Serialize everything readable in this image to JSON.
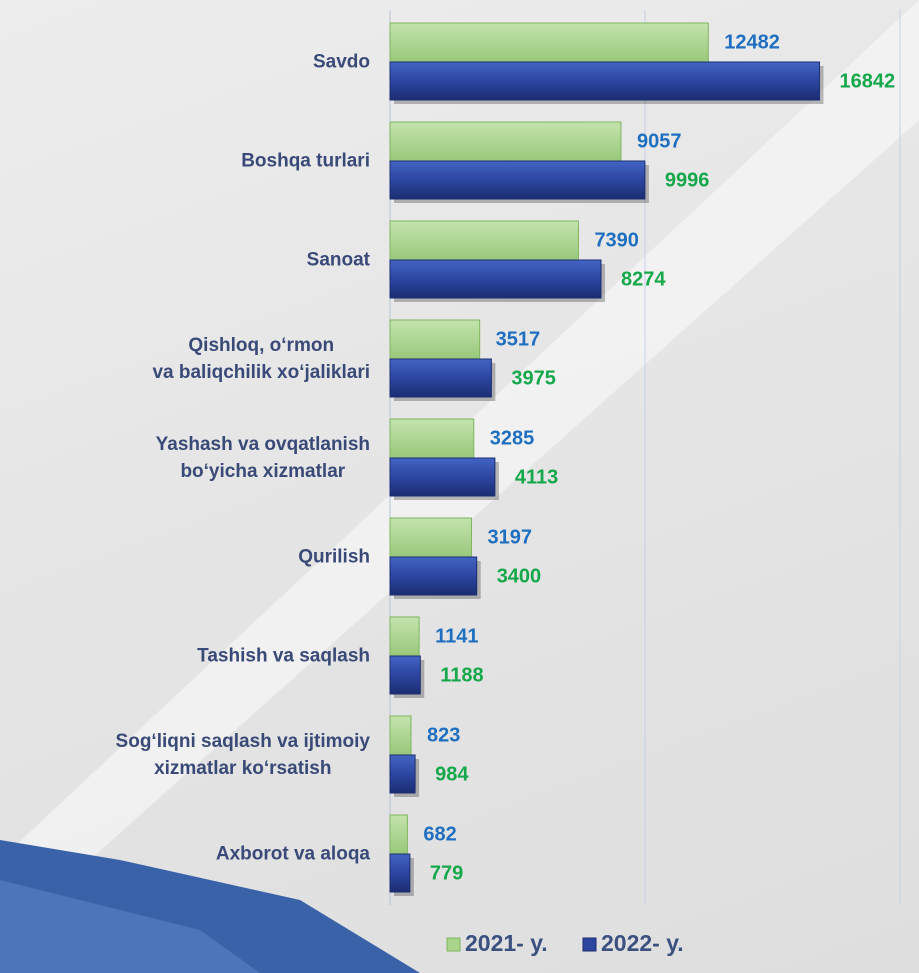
{
  "chart_data": {
    "type": "bar",
    "orientation": "horizontal",
    "categories": [
      "Savdo",
      "Boshqa turlari",
      "Sanoat",
      "Qishloq, o‘rmon\nva baliqchilik xo‘jaliklari",
      "Yashash va ovqatlanish\nbo‘yicha xizmatlar",
      "Qurilish",
      "Tashish va saqlash",
      "Sog‘liqni saqlash va ijtimoiy\nxizmatlar ko‘rsatish",
      "Axborot va aloqa"
    ],
    "series": [
      {
        "name": "2021- y.",
        "color": "#a9d48c",
        "label_color": "#1f6fc0",
        "values": [
          12482,
          9057,
          7390,
          3517,
          3285,
          3197,
          1141,
          823,
          682
        ]
      },
      {
        "name": "2022- y.",
        "color": "#2c46a0",
        "label_color": "#15a84a",
        "values": [
          16842,
          9996,
          8274,
          3975,
          4113,
          3400,
          1188,
          984,
          779
        ]
      }
    ],
    "xlim": [
      0,
      20000
    ],
    "xticks": [
      0,
      10000,
      20000
    ],
    "grid": true,
    "legend": "bottom"
  }
}
